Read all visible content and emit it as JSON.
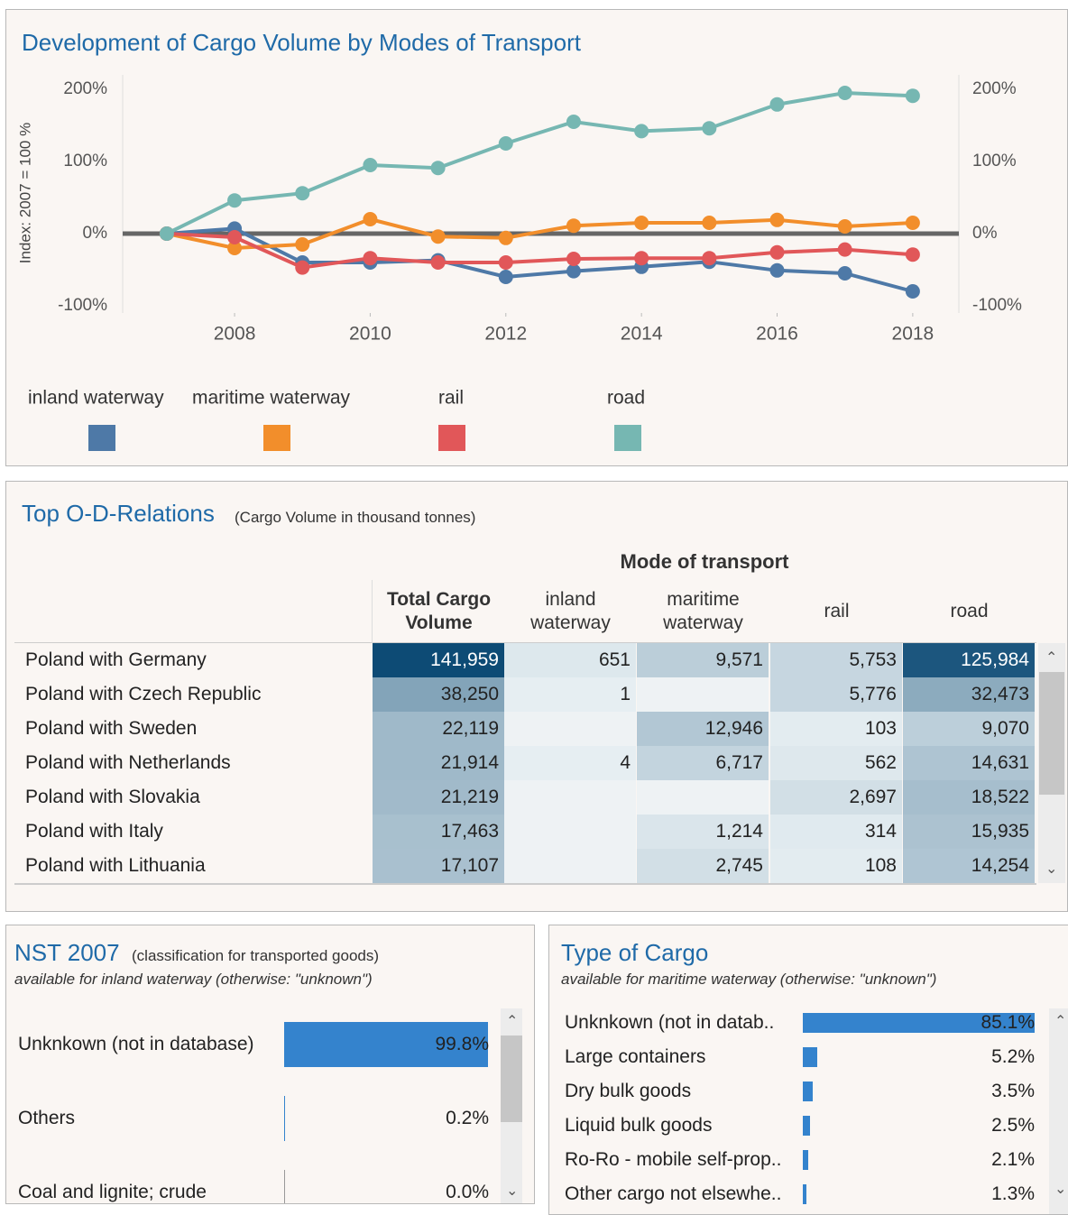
{
  "chart_data": [
    {
      "type": "line",
      "title": "Development of Cargo Volume by Modes of Transport",
      "y_label": "Index: 2007 = 100 %",
      "x": [
        2007,
        2008,
        2009,
        2010,
        2011,
        2012,
        2013,
        2014,
        2015,
        2016,
        2017,
        2018
      ],
      "xlim": [
        2006.35,
        2018.68
      ],
      "xticks": [
        2008,
        2010,
        2012,
        2014,
        2016,
        2018
      ],
      "ylim": [
        -110,
        215
      ],
      "yticks": [
        {
          "value": -100,
          "label": "-100%"
        },
        {
          "value": 0,
          "label": "0%"
        },
        {
          "value": 100,
          "label": "100%"
        },
        {
          "value": 200,
          "label": "200%"
        }
      ],
      "y2lim": [
        -110,
        215
      ],
      "y2ticks": [
        {
          "value": -100,
          "label": "-100%"
        },
        {
          "value": 0,
          "label": "0%"
        },
        {
          "value": 100,
          "label": "100%"
        },
        {
          "value": 200,
          "label": "200%"
        }
      ],
      "series": [
        {
          "name": "inland waterway",
          "color": "#4e79a7",
          "values": [
            0,
            7,
            -40,
            -40,
            -37,
            -60,
            -52,
            -46,
            -39,
            -51,
            -55,
            -80
          ]
        },
        {
          "name": "maritime waterway",
          "color": "#f28e2b",
          "values": [
            0,
            -20,
            -15,
            20,
            -4,
            -6,
            11,
            15,
            15,
            19,
            10,
            15
          ]
        },
        {
          "name": "rail",
          "color": "#e15759",
          "values": [
            0,
            -5,
            -47,
            -34,
            -40,
            -40,
            -35,
            -34,
            -34,
            -26,
            -22,
            -29
          ]
        },
        {
          "name": "road",
          "color": "#76b7b2",
          "values": [
            0,
            46,
            56,
            95,
            91,
            125,
            155,
            142,
            146,
            179,
            195,
            191
          ]
        }
      ]
    },
    {
      "type": "bar",
      "title": "NST 2007",
      "subtitle": "(classification for transported goods)",
      "note": "available for inland waterway (otherwise: \"unknown\")",
      "categories": [
        "Unknkown (not in database)",
        "Others",
        "Coal and lignite; crude petroleum and natural gas"
      ],
      "values": [
        99.8,
        0.2,
        0.0
      ],
      "value_labels": [
        "99.8%",
        "0.2%",
        "0.0%"
      ],
      "xlim": [
        0,
        100
      ],
      "color": "#3483cd"
    },
    {
      "type": "bar",
      "title": "Type of Cargo",
      "note": "available for maritime waterway (otherwise: \"unknown\")",
      "categories": [
        "Unknkown (not in datab..",
        "Large containers",
        "Dry bulk goods",
        "Liquid bulk goods",
        "Ro-Ro - mobile self-prop..",
        "Other cargo not elsewhe.."
      ],
      "values": [
        85.1,
        5.2,
        3.5,
        2.5,
        2.1,
        1.3
      ],
      "value_labels": [
        "85.1%",
        "5.2%",
        "3.5%",
        "2.5%",
        "2.1%",
        "1.3%"
      ],
      "xlim": [
        0,
        100
      ],
      "color": "#3483cd"
    }
  ],
  "table": {
    "title": "Top O-D-Relations",
    "subtitle": "(Cargo Volume in thousand tonnes)",
    "group_header": "Mode of transport",
    "columns": [
      "Total Cargo Volume",
      "inland waterway",
      "maritime waterway",
      "rail",
      "road"
    ],
    "rows": [
      {
        "name": "Poland with Germany",
        "cells": [
          "141,959",
          "651",
          "9,571",
          "5,753",
          "125,984"
        ]
      },
      {
        "name": "Poland with Czech Republic",
        "cells": [
          "38,250",
          "1",
          null,
          "5,776",
          "32,473"
        ]
      },
      {
        "name": "Poland with Sweden",
        "cells": [
          "22,119",
          null,
          "12,946",
          "103",
          "9,070"
        ]
      },
      {
        "name": "Poland with Netherlands",
        "cells": [
          "21,914",
          "4",
          "6,717",
          "562",
          "14,631"
        ]
      },
      {
        "name": "Poland with Slovakia",
        "cells": [
          "21,219",
          null,
          null,
          "2,697",
          "18,522"
        ]
      },
      {
        "name": "Poland with Italy",
        "cells": [
          "17,463",
          null,
          "1,214",
          "314",
          "15,935"
        ]
      },
      {
        "name": "Poland with Lithuania",
        "cells": [
          "17,107",
          null,
          "2,745",
          "108",
          "14,254"
        ]
      }
    ]
  }
}
